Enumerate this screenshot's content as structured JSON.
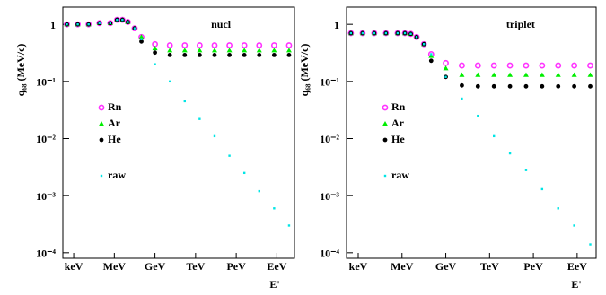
{
  "chart_data": [
    {
      "type": "scatter",
      "title": "nucl",
      "ylabel": "q₆₈ (MeV/c)",
      "xlabel": "E'",
      "log_y": true,
      "xlim": [
        2.2,
        19.3
      ],
      "ylim": [
        8e-05,
        2
      ],
      "xticks": [
        {
          "value": 3,
          "label": "keV"
        },
        {
          "value": 6,
          "label": "MeV"
        },
        {
          "value": 9,
          "label": "GeV"
        },
        {
          "value": 12,
          "label": "TeV"
        },
        {
          "value": 15,
          "label": "PeV"
        },
        {
          "value": 18,
          "label": "EeV"
        }
      ],
      "yticks": [
        1,
        {
          "value": 0.1,
          "label": "10⁻¹"
        },
        {
          "value": 0.01,
          "label": "10⁻²"
        },
        {
          "value": 0.001,
          "label": "10⁻³"
        },
        {
          "value": 0.0001,
          "label": "10⁻⁴"
        }
      ],
      "x": [
        2.5,
        3.3,
        4.1,
        4.9,
        5.7,
        6.2,
        6.6,
        7.0,
        7.5,
        8.0,
        9.0,
        10.1,
        11.2,
        12.3,
        13.4,
        14.5,
        15.6,
        16.7,
        17.8,
        18.9
      ],
      "series": [
        {
          "name": "Rn",
          "color": "#ff33ff",
          "marker": "ring",
          "values": [
            1.0,
            1.0,
            1.0,
            1.05,
            1.05,
            1.2,
            1.2,
            1.1,
            0.85,
            0.6,
            0.45,
            0.43,
            0.43,
            0.43,
            0.43,
            0.43,
            0.43,
            0.43,
            0.43,
            0.43
          ]
        },
        {
          "name": "Ar",
          "color": "#00ee00",
          "marker": "triangle",
          "values": [
            1.0,
            1.0,
            1.0,
            1.05,
            1.05,
            1.2,
            1.2,
            1.1,
            0.85,
            0.6,
            0.38,
            0.35,
            0.35,
            0.35,
            0.35,
            0.35,
            0.35,
            0.35,
            0.35,
            0.35
          ]
        },
        {
          "name": "He",
          "color": "#000000",
          "marker": "dot",
          "values": [
            1.0,
            1.0,
            1.0,
            1.05,
            1.05,
            1.2,
            1.2,
            1.1,
            0.85,
            0.5,
            0.32,
            0.29,
            0.29,
            0.29,
            0.29,
            0.29,
            0.29,
            0.29,
            0.29,
            0.29
          ]
        },
        {
          "name": "raw",
          "color": "#00e5e5",
          "marker": "star",
          "values": [
            1.0,
            1.0,
            1.0,
            1.05,
            1.05,
            1.2,
            1.2,
            1.1,
            0.85,
            0.55,
            0.2,
            0.1,
            0.045,
            0.022,
            0.011,
            0.005,
            0.0025,
            0.0012,
            0.0006,
            0.0003
          ]
        }
      ]
    },
    {
      "type": "scatter",
      "title": "triplet",
      "ylabel": "q₆₈ (MeV/c)",
      "xlabel": "E'",
      "log_y": true,
      "xlim": [
        2.2,
        19.3
      ],
      "ylim": [
        8e-05,
        2
      ],
      "xticks": [
        {
          "value": 3,
          "label": "keV"
        },
        {
          "value": 6,
          "label": "MeV"
        },
        {
          "value": 9,
          "label": "GeV"
        },
        {
          "value": 12,
          "label": "TeV"
        },
        {
          "value": 15,
          "label": "PeV"
        },
        {
          "value": 18,
          "label": "EeV"
        }
      ],
      "yticks": [
        1,
        {
          "value": 0.1,
          "label": "10⁻¹"
        },
        {
          "value": 0.01,
          "label": "10⁻²"
        },
        {
          "value": 0.001,
          "label": "10⁻³"
        },
        {
          "value": 0.0001,
          "label": "10⁻⁴"
        }
      ],
      "x": [
        2.5,
        3.3,
        4.1,
        4.9,
        5.7,
        6.2,
        6.6,
        7.0,
        7.5,
        8.0,
        9.0,
        10.1,
        11.2,
        12.3,
        13.4,
        14.5,
        15.6,
        16.7,
        17.8,
        18.9
      ],
      "series": [
        {
          "name": "Rn",
          "color": "#ff33ff",
          "marker": "ring",
          "values": [
            0.7,
            0.7,
            0.7,
            0.7,
            0.7,
            0.7,
            0.68,
            0.6,
            0.45,
            0.3,
            0.21,
            0.19,
            0.19,
            0.19,
            0.19,
            0.19,
            0.19,
            0.19,
            0.19,
            0.19
          ]
        },
        {
          "name": "Ar",
          "color": "#00ee00",
          "marker": "triangle",
          "values": [
            0.7,
            0.7,
            0.7,
            0.7,
            0.7,
            0.7,
            0.68,
            0.6,
            0.45,
            0.28,
            0.17,
            0.13,
            0.13,
            0.13,
            0.13,
            0.13,
            0.13,
            0.13,
            0.13,
            0.13
          ]
        },
        {
          "name": "He",
          "color": "#000000",
          "marker": "dot",
          "values": [
            0.7,
            0.7,
            0.7,
            0.7,
            0.7,
            0.7,
            0.68,
            0.6,
            0.45,
            0.23,
            0.12,
            0.085,
            0.082,
            0.082,
            0.082,
            0.082,
            0.082,
            0.082,
            0.082,
            0.082
          ]
        },
        {
          "name": "raw",
          "color": "#00e5e5",
          "marker": "star",
          "values": [
            0.7,
            0.7,
            0.7,
            0.7,
            0.7,
            0.7,
            0.68,
            0.6,
            0.45,
            0.3,
            0.12,
            0.05,
            0.025,
            0.011,
            0.0055,
            0.0028,
            0.0013,
            0.0006,
            0.0003,
            0.00014
          ]
        }
      ]
    }
  ]
}
